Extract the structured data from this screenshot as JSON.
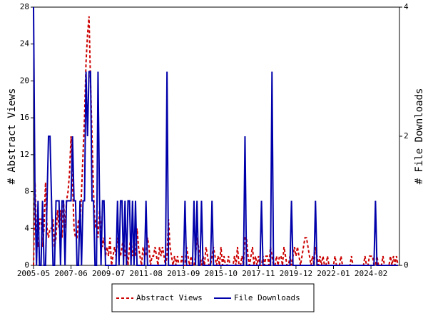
{
  "chart_data": {
    "type": "line",
    "y_label": "# Abstract Views",
    "y2_label": "# File Downloads",
    "x": [
      "2005-05",
      "2005-06",
      "2005-07",
      "2005-08",
      "2005-09",
      "2005-10",
      "2005-11",
      "2005-12",
      "2006-01",
      "2006-02",
      "2006-03",
      "2006-04",
      "2006-05",
      "2006-06",
      "2006-07",
      "2006-08",
      "2006-09",
      "2006-10",
      "2006-11",
      "2006-12",
      "2007-01",
      "2007-02",
      "2007-03",
      "2007-04",
      "2007-05",
      "2007-06",
      "2007-07",
      "2007-08",
      "2007-09",
      "2007-10",
      "2007-11",
      "2007-12",
      "2008-01",
      "2008-02",
      "2008-03",
      "2008-04",
      "2008-05",
      "2008-06",
      "2008-07",
      "2008-08",
      "2008-09",
      "2008-10",
      "2008-11",
      "2008-12",
      "2009-01",
      "2009-02",
      "2009-03",
      "2009-04",
      "2009-05",
      "2009-06",
      "2009-07",
      "2009-08",
      "2009-09",
      "2009-10",
      "2009-11",
      "2009-12",
      "2010-01",
      "2010-02",
      "2010-03",
      "2010-04",
      "2010-05",
      "2010-06",
      "2010-07",
      "2010-08",
      "2010-09",
      "2010-10",
      "2010-11",
      "2010-12",
      "2011-01",
      "2011-02",
      "2011-03",
      "2011-04",
      "2011-05",
      "2011-06",
      "2011-07",
      "2011-08",
      "2011-09",
      "2011-10",
      "2011-11",
      "2011-12",
      "2012-01",
      "2012-02",
      "2012-03",
      "2012-04",
      "2012-05",
      "2012-06",
      "2012-07",
      "2012-08",
      "2012-09",
      "2012-10",
      "2012-11",
      "2012-12",
      "2013-01",
      "2013-02",
      "2013-03",
      "2013-04",
      "2013-05",
      "2013-06",
      "2013-07",
      "2013-08",
      "2013-09",
      "2013-10",
      "2013-11",
      "2013-12",
      "2014-01",
      "2014-02",
      "2014-03",
      "2014-04",
      "2014-05",
      "2014-06",
      "2014-07",
      "2014-08",
      "2014-09",
      "2014-10",
      "2014-11",
      "2014-12",
      "2015-01",
      "2015-02",
      "2015-03",
      "2015-04",
      "2015-05",
      "2015-06",
      "2015-07",
      "2015-08",
      "2015-09",
      "2015-10",
      "2015-11",
      "2015-12",
      "2016-01",
      "2016-02",
      "2016-03",
      "2016-04",
      "2016-05",
      "2016-06",
      "2016-07",
      "2016-08",
      "2016-09",
      "2016-10",
      "2016-11",
      "2016-12",
      "2017-01",
      "2017-02",
      "2017-03",
      "2017-04",
      "2017-05",
      "2017-06",
      "2017-07",
      "2017-08",
      "2017-09",
      "2017-10",
      "2017-11",
      "2017-12",
      "2018-01",
      "2018-02",
      "2018-03",
      "2018-04",
      "2018-05",
      "2018-06",
      "2018-07",
      "2018-08",
      "2018-09",
      "2018-10",
      "2018-11",
      "2018-12",
      "2019-01",
      "2019-02",
      "2019-03",
      "2019-04",
      "2019-05",
      "2019-06",
      "2019-07",
      "2019-08",
      "2019-09",
      "2019-10",
      "2019-11",
      "2019-12",
      "2020-01",
      "2020-02",
      "2020-03",
      "2020-04",
      "2020-05",
      "2020-06",
      "2020-07",
      "2020-08",
      "2020-09",
      "2020-10",
      "2020-11",
      "2020-12",
      "2021-01",
      "2021-02",
      "2021-03",
      "2021-04",
      "2021-05",
      "2021-06",
      "2021-07",
      "2021-08",
      "2021-09",
      "2021-10",
      "2021-11",
      "2021-12",
      "2022-01",
      "2022-02",
      "2022-03",
      "2022-04",
      "2022-05",
      "2022-06",
      "2022-07",
      "2022-08",
      "2022-09",
      "2022-10",
      "2022-11",
      "2022-12",
      "2023-01",
      "2023-02",
      "2023-03",
      "2023-04",
      "2023-05",
      "2023-06",
      "2023-07",
      "2023-08",
      "2023-09",
      "2023-10",
      "2023-11",
      "2023-12",
      "2024-01",
      "2024-02",
      "2024-03",
      "2024-04",
      "2024-05",
      "2024-06",
      "2024-07",
      "2024-08",
      "2024-09",
      "2024-10",
      "2024-11",
      "2024-12",
      "2025-01",
      "2025-02",
      "2025-03",
      "2025-04",
      "2025-05",
      "2025-06",
      "2025-07",
      "2025-08"
    ],
    "xticks": [
      "2005-05",
      "2007-06",
      "2009-07",
      "2011-08",
      "2013-09",
      "2015-10",
      "2017-11",
      "2019-12",
      "2022-01",
      "2024-02"
    ],
    "ylim": [
      0,
      28
    ],
    "yticks": [
      0,
      4,
      8,
      12,
      16,
      20,
      24,
      28
    ],
    "y2lim": [
      0,
      4
    ],
    "y2ticks": [
      0,
      2,
      4
    ],
    "series": [
      {
        "name": "Abstract Views",
        "color": "#cc0000",
        "dash": true,
        "values": [
          0,
          9,
          3,
          2,
          5,
          5,
          2,
          4,
          9,
          4,
          3,
          4,
          4,
          5,
          2,
          3,
          6,
          4,
          6,
          3,
          7,
          4,
          7,
          8,
          10,
          14,
          9,
          4,
          3,
          3,
          5,
          4,
          8,
          12,
          16,
          22,
          25,
          27,
          20,
          14,
          8,
          4,
          5,
          3,
          6,
          4,
          2,
          3,
          1,
          2,
          1,
          3,
          0,
          1,
          2,
          1,
          3,
          2,
          1,
          2,
          3,
          1,
          2,
          0,
          2,
          3,
          1,
          2,
          1,
          4,
          2,
          1,
          0,
          2,
          1,
          1,
          3,
          2,
          0,
          1,
          1,
          2,
          1,
          0,
          2,
          1,
          2,
          1,
          0,
          1,
          5,
          2,
          1,
          0,
          1,
          0,
          1,
          0,
          0,
          1,
          0,
          0,
          2,
          1,
          0,
          1,
          0,
          0,
          1,
          3,
          2,
          1,
          0,
          1,
          0,
          2,
          1,
          0,
          0,
          1,
          2,
          1,
          0,
          1,
          0,
          2,
          0,
          1,
          0,
          0,
          1,
          0,
          0,
          0,
          1,
          0,
          2,
          0,
          0,
          1,
          0,
          3,
          3,
          1,
          0,
          1,
          2,
          0,
          1,
          0,
          1,
          0,
          0,
          1,
          0,
          1,
          1,
          0,
          2,
          1,
          0,
          0,
          1,
          0,
          1,
          1,
          0,
          2,
          1,
          0,
          0,
          1,
          0,
          1,
          2,
          1,
          2,
          1,
          0,
          1,
          2,
          3,
          3,
          2,
          1,
          0,
          1,
          0,
          2,
          1,
          0,
          1,
          0,
          1,
          0,
          0,
          1,
          0,
          0,
          0,
          0,
          1,
          0,
          0,
          0,
          1,
          0,
          0,
          0,
          0,
          0,
          0,
          1,
          0,
          0,
          0,
          0,
          0,
          0,
          0,
          0,
          1,
          0,
          0,
          1,
          1,
          1,
          0,
          0,
          1,
          0,
          0,
          0,
          1,
          0,
          0,
          0,
          0,
          1,
          0,
          1,
          0,
          1,
          0
        ]
      },
      {
        "name": "File Downloads",
        "color": "#0000aa",
        "axis": "y2",
        "values": [
          4,
          1,
          0,
          1,
          0,
          0,
          1,
          0,
          0,
          1,
          2,
          2,
          1,
          0,
          0,
          1,
          1,
          1,
          0,
          1,
          1,
          0,
          1,
          1,
          1,
          1,
          2,
          1,
          1,
          0,
          0,
          1,
          0,
          1,
          1,
          3,
          2,
          3,
          3,
          1,
          1,
          0,
          0,
          3,
          1,
          0,
          1,
          1,
          0,
          0,
          0,
          0,
          0,
          0,
          0,
          0,
          1,
          0,
          1,
          1,
          0,
          1,
          0,
          1,
          1,
          0,
          1,
          0,
          1,
          0,
          0,
          0,
          0,
          0,
          0,
          1,
          0,
          0,
          0,
          0,
          0,
          0,
          0,
          0,
          0,
          0,
          0,
          0,
          0,
          3,
          0,
          0,
          0,
          0,
          0,
          0,
          0,
          0,
          0,
          0,
          0,
          1,
          0,
          0,
          0,
          0,
          0,
          1,
          0,
          1,
          0,
          0,
          1,
          0,
          0,
          0,
          0,
          0,
          0,
          1,
          0,
          0,
          0,
          0,
          0,
          0,
          0,
          0,
          0,
          0,
          0,
          0,
          0,
          0,
          0,
          0,
          0,
          0,
          0,
          0,
          0,
          2,
          0,
          0,
          0,
          0,
          0,
          0,
          0,
          0,
          0,
          0,
          1,
          0,
          0,
          0,
          0,
          0,
          0,
          3,
          0,
          0,
          0,
          0,
          0,
          0,
          0,
          0,
          0,
          0,
          0,
          0,
          1,
          0,
          0,
          0,
          0,
          0,
          0,
          0,
          0,
          0,
          0,
          0,
          0,
          0,
          0,
          0,
          1,
          0,
          0,
          0,
          0,
          0,
          0,
          0,
          0,
          0,
          0,
          0,
          0,
          0,
          0,
          0,
          0,
          0,
          0,
          0,
          0,
          0,
          0,
          0,
          0,
          0,
          0,
          0,
          0,
          0,
          0,
          0,
          0,
          0,
          0,
          0,
          0,
          0,
          0,
          0,
          1,
          0,
          0,
          0,
          0,
          0,
          0,
          0,
          0,
          0,
          0,
          0,
          0,
          0,
          0,
          0
        ]
      }
    ]
  }
}
